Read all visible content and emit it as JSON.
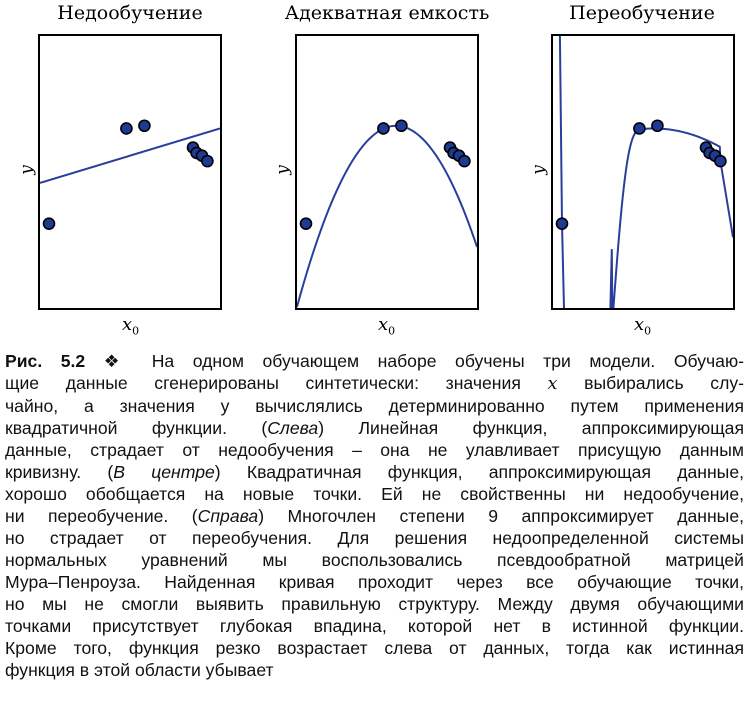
{
  "figure": {
    "panels": [
      {
        "title": "Недообучение",
        "ylabel": "y",
        "xlabel": "x",
        "xlabel_sub": "0",
        "chart_data": {
          "type": "scatter",
          "title": "Недообучение",
          "xlim": [
            0,
            1
          ],
          "ylim": [
            0,
            1
          ],
          "points": [
            [
              0.05,
              0.31
            ],
            [
              0.48,
              0.66
            ],
            [
              0.58,
              0.67
            ],
            [
              0.85,
              0.59
            ],
            [
              0.87,
              0.57
            ],
            [
              0.9,
              0.56
            ],
            [
              0.93,
              0.54
            ]
          ],
          "fit": {
            "kind": "linear",
            "line": [
              [
                0,
                0.46
              ],
              [
                1,
                0.66
              ]
            ]
          }
        }
      },
      {
        "title": "Адекватная емкость",
        "ylabel": "y",
        "xlabel": "x",
        "xlabel_sub": "0",
        "chart_data": {
          "type": "scatter",
          "title": "Адекватная емкость",
          "xlim": [
            0,
            1
          ],
          "ylim": [
            0,
            1
          ],
          "points": [
            [
              0.05,
              0.31
            ],
            [
              0.48,
              0.66
            ],
            [
              0.58,
              0.67
            ],
            [
              0.85,
              0.59
            ],
            [
              0.87,
              0.57
            ],
            [
              0.9,
              0.56
            ],
            [
              0.93,
              0.54
            ]
          ],
          "fit": {
            "kind": "quadratic"
          }
        }
      },
      {
        "title": "Переобучение",
        "ylabel": "y",
        "xlabel": "x",
        "xlabel_sub": "0",
        "chart_data": {
          "type": "scatter",
          "title": "Переобучение",
          "xlim": [
            0,
            1
          ],
          "ylim": [
            0,
            1
          ],
          "points": [
            [
              0.05,
              0.31
            ],
            [
              0.48,
              0.66
            ],
            [
              0.58,
              0.67
            ],
            [
              0.85,
              0.59
            ],
            [
              0.87,
              0.57
            ],
            [
              0.9,
              0.56
            ],
            [
              0.93,
              0.54
            ]
          ],
          "fit": {
            "kind": "polynomial",
            "degree": 9
          }
        }
      }
    ]
  },
  "caption": {
    "label": "Рис. 5.2",
    "separator": "❖",
    "lines": [
      "На одном обучающем наборе обучены три модели. Обучаю-",
      "щие данные сгенерированы синтетически: значения",
      "x",
      "выбирались слу-",
      "чайно, а значения y вычислялись детерминированно путем применения",
      "квадратичной функции. (",
      "Слева",
      ") Линейная функция, аппроксимирующая",
      "данные, страдает от недообучения – она не улавливает присущую данным",
      "кривизну. (",
      "В центре",
      ") Квадратичная функция, аппроксимирующая данные,",
      "хорошо обобщается на новые точки. Ей не свойственны ни недообучение,",
      "ни переобучение. (",
      "Справа",
      ") Многочлен степени 9 аппроксимирует данные,",
      "но страдает от переобучения. Для решения недоопределенной системы",
      "нормальных уравнений мы воспользовались псевдообратной матрицей",
      "Мура–Пенроуза. Найденная кривая проходит через все обучающие точки,",
      "но мы не смогли выявить правильную структуру. Между двумя обучающими",
      "точками присутствует глубокая впадина, которой нет в истинной функции.",
      "Кроме того, функция резко возрастает слева от данных, тогда как истинная",
      "функция в этой области убывает"
    ]
  }
}
